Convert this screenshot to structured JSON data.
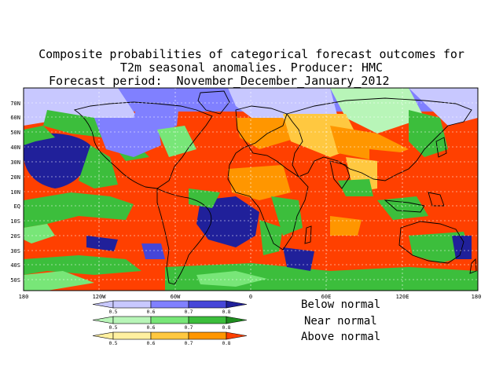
{
  "title": {
    "line1": "Composite probabilities of categorical forecast outcomes for",
    "line2": "T2m seasonal anomalies. Producer: HMC",
    "line3": "Forecast period:  November_December_January_2012"
  },
  "map": {
    "lat_labels": [
      "70N",
      "60N",
      "50N",
      "40N",
      "30N",
      "20N",
      "10N",
      "EQ",
      "10S",
      "20S",
      "30S",
      "40S",
      "50S"
    ],
    "lon_labels": [
      "180",
      "120W",
      "60W",
      "0",
      "60E",
      "120E",
      "180"
    ]
  },
  "legend": {
    "categories": [
      {
        "name": "Below normal",
        "colors": [
          "#c8c8ff",
          "#8080ff",
          "#4646d8",
          "#20209a"
        ]
      },
      {
        "name": "Near normal",
        "colors": [
          "#b8f5b8",
          "#78e678",
          "#3cbe3c",
          "#1e8c1e"
        ]
      },
      {
        "name": "Above normal",
        "colors": [
          "#fff0a0",
          "#ffc840",
          "#ff9600",
          "#ff4000"
        ]
      }
    ],
    "ticks": [
      "0.5",
      "0.6",
      "0.7",
      "0.8"
    ]
  }
}
